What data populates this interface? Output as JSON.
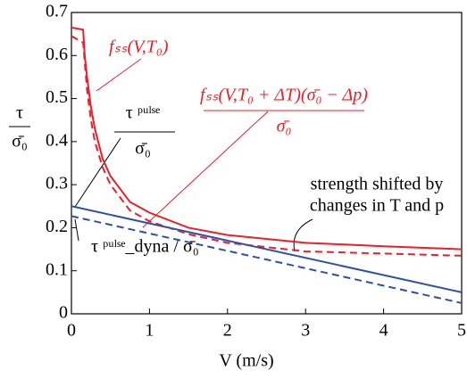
{
  "chart_data": {
    "type": "line",
    "xlabel": "V (m/s)",
    "ylabel": {
      "numerator": "τ",
      "denominator": "σ̄₀"
    },
    "xlim": [
      0,
      5
    ],
    "xticks": [
      0,
      1,
      2,
      3,
      4,
      5
    ],
    "ylim": [
      0,
      0.7
    ],
    "yticks": [
      0,
      0.1,
      0.2,
      0.3,
      0.4,
      0.5,
      0.6,
      0.7
    ],
    "series": [
      {
        "color": "#e8202a",
        "dash": false,
        "x": [
          0,
          0.15,
          0.17,
          0.2,
          0.25,
          0.3,
          0.4,
          0.5,
          0.75,
          1,
          1.5,
          2,
          3,
          4,
          5
        ],
        "values": [
          0.665,
          0.66,
          0.6,
          0.55,
          0.48,
          0.43,
          0.36,
          0.32,
          0.26,
          0.235,
          0.2,
          0.183,
          0.165,
          0.157,
          0.15
        ]
      },
      {
        "color": "#e8202a",
        "dash": true,
        "x": [
          0,
          0.15,
          0.2,
          0.25,
          0.3,
          0.4,
          0.5,
          0.75,
          1,
          1.5,
          2,
          3,
          4,
          5
        ],
        "values": [
          0.645,
          0.63,
          0.52,
          0.45,
          0.4,
          0.34,
          0.3,
          0.24,
          0.215,
          0.185,
          0.165,
          0.145,
          0.14,
          0.135
        ]
      },
      {
        "color": "#2f4fa8",
        "dash": false,
        "x": [
          0,
          5
        ],
        "values": [
          0.25,
          0.05
        ]
      },
      {
        "color": "#2f4fa8",
        "dash": true,
        "x": [
          0,
          5
        ],
        "values": [
          0.227,
          0.025
        ]
      }
    ],
    "annotations": [
      {
        "text": "fₛₛ(V,T₀)"
      },
      {
        "numerator": "fₛₛ(V,T₀ + ΔT)(σ̄₀ − Δp)",
        "denominator": "σ̄₀"
      },
      {
        "numerator": "τ ᵖᵘˡˢᵉ",
        "denominator": "σ̄₀"
      },
      {
        "text": "τ ᵖᵘˡˢᵉ_dyna / σ̄₀"
      },
      {
        "line1": "strength shifted by",
        "line2": "changes in T and p"
      }
    ]
  }
}
